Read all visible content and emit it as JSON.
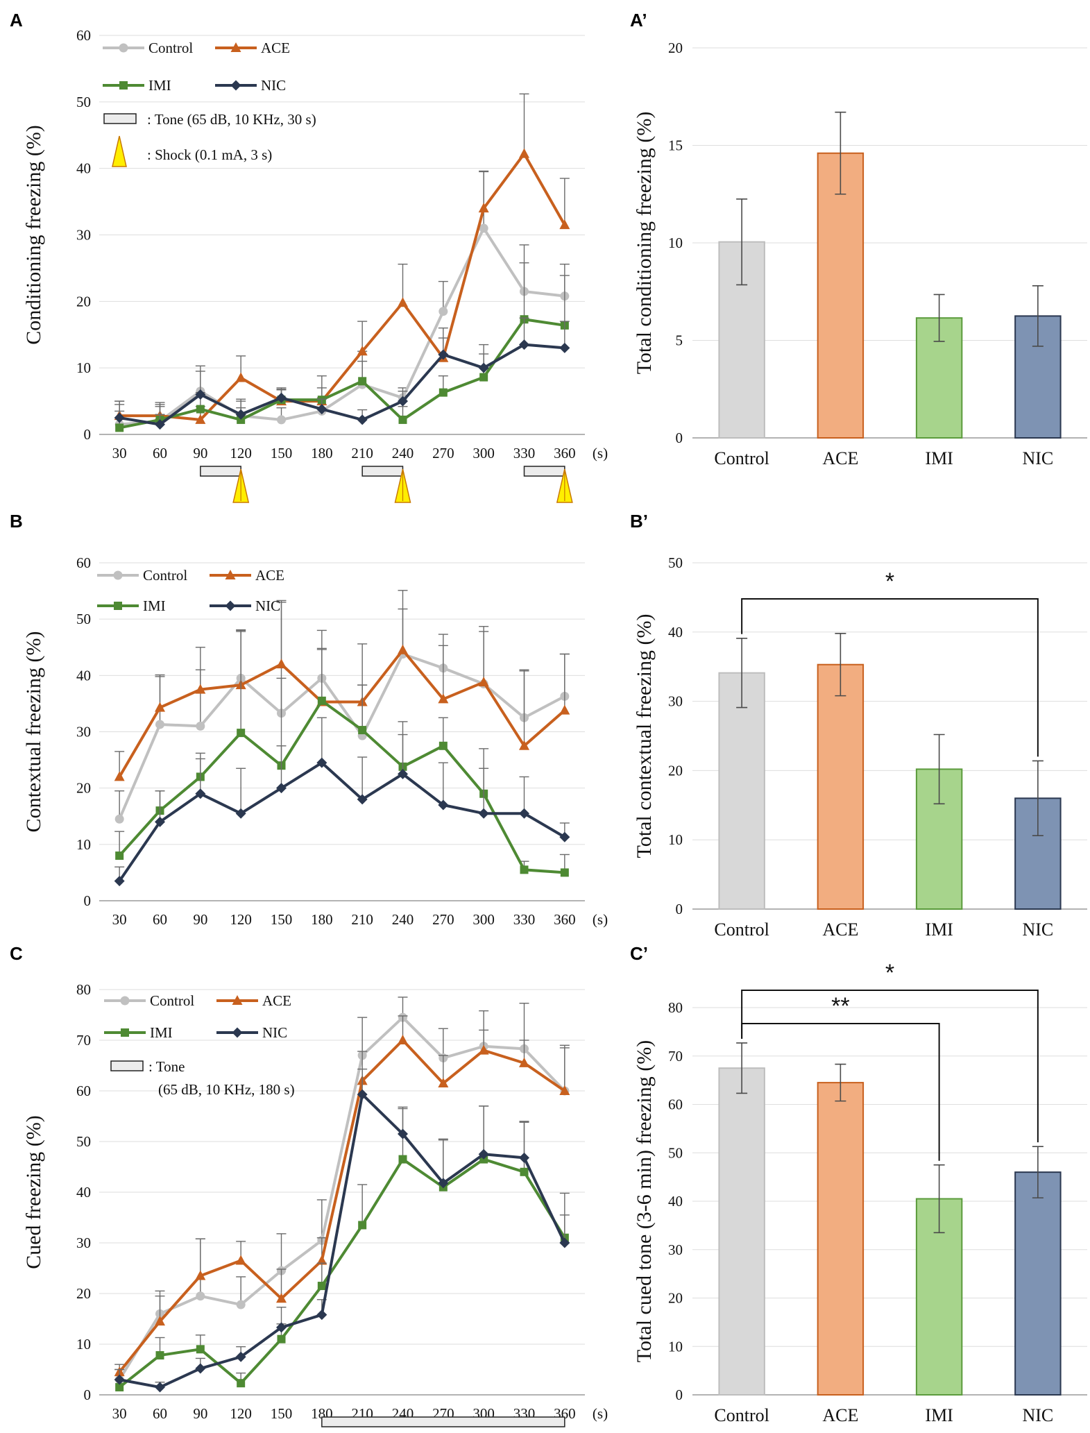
{
  "panel_labels": [
    "A",
    "A’",
    "B",
    "B’",
    "C",
    "C’"
  ],
  "series_colors": {
    "Control": "#c0c0c0",
    "ACE": "#c8601e",
    "IMI": "#4e8a33",
    "NIC": "#2b3850"
  },
  "bar_colors": {
    "Control": {
      "fill": "#d8d8d8",
      "stroke": "#bdbdbd"
    },
    "ACE": {
      "fill": "#f2ad80",
      "stroke": "#c8601e"
    },
    "IMI": {
      "fill": "#a7d48c",
      "stroke": "#5b9b3c"
    },
    "NIC": {
      "fill": "#7e93b3",
      "stroke": "#2b3850"
    }
  },
  "chart_data": [
    {
      "id": "A",
      "type": "line",
      "ylabel": "Conditioning freezing (%)",
      "x": [
        30,
        60,
        90,
        120,
        150,
        180,
        210,
        240,
        270,
        300,
        330,
        360
      ],
      "x_unit": "(s)",
      "ylim": [
        0,
        60
      ],
      "yticks": [
        0,
        10,
        20,
        30,
        40,
        50,
        60
      ],
      "series": [
        {
          "name": "Control",
          "values": [
            1.5,
            2.0,
            6.5,
            2.8,
            2.2,
            3.5,
            7.5,
            5.5,
            18.5,
            31.0,
            21.5,
            20.8
          ],
          "errors": [
            3.5,
            2.5,
            3.8,
            2.5,
            1.8,
            2.0,
            5.0,
            1.5,
            4.5,
            8.5,
            7.0,
            4.8
          ]
        },
        {
          "name": "ACE",
          "values": [
            2.8,
            2.8,
            2.2,
            8.5,
            5.0,
            5.0,
            12.5,
            19.8,
            11.5,
            34.0,
            42.2,
            31.5
          ],
          "errors": [
            2.2,
            2.0,
            2.0,
            3.3,
            1.8,
            3.8,
            4.5,
            5.8,
            4.5,
            5.6,
            9.0,
            7.0
          ]
        },
        {
          "name": "IMI",
          "values": [
            1.0,
            2.2,
            3.8,
            2.2,
            5.2,
            5.2,
            8.0,
            2.2,
            6.3,
            8.6,
            17.3,
            16.4
          ],
          "errors": [
            2.5,
            2.0,
            2.5,
            1.8,
            1.5,
            1.8,
            3.0,
            2.0,
            2.5,
            3.5,
            8.5,
            7.5
          ]
        },
        {
          "name": "NIC",
          "values": [
            2.5,
            1.5,
            6.0,
            3.0,
            5.5,
            3.8,
            2.2,
            5.0,
            12.0,
            10.0,
            13.5,
            13.0
          ],
          "errors": [
            2.0,
            1.5,
            3.5,
            2.0,
            1.5,
            1.5,
            1.5,
            1.5,
            2.5,
            3.5,
            4.0,
            4.0
          ]
        }
      ],
      "legend": {
        "Control": "Control",
        "ACE": "ACE",
        "IMI": "IMI",
        "NIC": "NIC"
      },
      "annotations": {
        "tone": ": Tone (65 dB, 10 KHz, 30 s)",
        "shock": ": Shock (0.1 mA, 3 s)"
      },
      "tone_intervals": [
        [
          90,
          120
        ],
        [
          210,
          240
        ],
        [
          330,
          360
        ]
      ],
      "shock_times": [
        120,
        240,
        360
      ]
    },
    {
      "id": "A'",
      "type": "bar",
      "ylabel": "Total conditioning freezing (%)",
      "categories": [
        "Control",
        "ACE",
        "IMI",
        "NIC"
      ],
      "values": [
        10.05,
        14.6,
        6.15,
        6.25
      ],
      "errors": [
        2.2,
        2.1,
        1.2,
        1.55
      ],
      "ylim": [
        0,
        20
      ],
      "yticks": [
        0,
        5,
        10,
        15,
        20
      ],
      "significance": []
    },
    {
      "id": "B",
      "type": "line",
      "ylabel": "Contextual freezing (%)",
      "x": [
        30,
        60,
        90,
        120,
        150,
        180,
        210,
        240,
        270,
        300,
        330,
        360
      ],
      "x_unit": "(s)",
      "ylim": [
        0,
        60
      ],
      "yticks": [
        0,
        10,
        20,
        30,
        40,
        50,
        60
      ],
      "series": [
        {
          "name": "Control",
          "values": [
            14.5,
            31.3,
            31.0,
            39.5,
            33.3,
            39.5,
            29.3,
            43.8,
            41.3,
            38.5,
            32.5,
            36.3
          ],
          "errors": [
            5.0,
            8.5,
            10.0,
            8.5,
            20.0,
            8.5,
            9.0,
            11.3,
            6.0,
            10.2,
            8.5,
            7.5
          ]
        },
        {
          "name": "ACE",
          "values": [
            22.0,
            34.3,
            37.5,
            38.3,
            42.0,
            35.3,
            35.3,
            44.5,
            35.8,
            38.8,
            27.5,
            33.8
          ],
          "errors": [
            4.5,
            5.8,
            7.5,
            9.8,
            11.0,
            9.3,
            10.3,
            7.3,
            9.5,
            9.0,
            13.3,
            10.0
          ]
        },
        {
          "name": "IMI",
          "values": [
            8.0,
            16.0,
            22.0,
            29.8,
            24.0,
            35.5,
            30.3,
            23.8,
            27.5,
            19.0,
            5.5,
            5.0
          ],
          "errors": [
            4.3,
            3.5,
            4.2,
            18.0,
            15.5,
            9.3,
            8.0,
            8.0,
            5.0,
            8.0,
            1.5,
            3.2
          ]
        },
        {
          "name": "NIC",
          "values": [
            3.5,
            14.0,
            19.0,
            15.5,
            20.0,
            24.5,
            18.0,
            22.5,
            17.0,
            15.5,
            15.5,
            11.3
          ],
          "errors": [
            2.5,
            5.5,
            6.2,
            8.0,
            7.5,
            8.0,
            7.5,
            7.0,
            7.5,
            8.0,
            6.5,
            2.5
          ]
        }
      ],
      "legend": {
        "Control": "Control",
        "ACE": "ACE",
        "IMI": "IMI",
        "NIC": "NIC"
      }
    },
    {
      "id": "B'",
      "type": "bar",
      "ylabel": "Total contextual freezing (%)",
      "categories": [
        "Control",
        "ACE",
        "IMI",
        "NIC"
      ],
      "values": [
        34.1,
        35.3,
        20.2,
        16.0
      ],
      "errors": [
        5.0,
        4.5,
        5.0,
        5.4
      ],
      "ylim": [
        0,
        50
      ],
      "yticks": [
        0,
        10,
        20,
        30,
        40,
        50
      ],
      "significance": [
        {
          "from": "Control",
          "to": "NIC",
          "label": "*"
        }
      ]
    },
    {
      "id": "C",
      "type": "line",
      "ylabel": "Cued freezing (%)",
      "x": [
        30,
        60,
        90,
        120,
        150,
        180,
        210,
        240,
        270,
        300,
        330,
        360
      ],
      "x_unit": "(s)",
      "ylim": [
        0,
        80
      ],
      "yticks": [
        0,
        10,
        20,
        30,
        40,
        50,
        60,
        70,
        80
      ],
      "series": [
        {
          "name": "Control",
          "values": [
            3.0,
            16.0,
            19.5,
            17.8,
            24.5,
            30.5,
            67.0,
            74.5,
            66.5,
            68.8,
            68.3,
            60.0
          ],
          "errors": [
            2.0,
            4.5,
            11.3,
            5.5,
            7.3,
            8.0,
            7.5,
            4.0,
            5.8,
            7.0,
            9.0,
            9.0
          ]
        },
        {
          "name": "ACE",
          "values": [
            4.5,
            14.5,
            23.5,
            26.5,
            19.0,
            26.5,
            62.0,
            70.0,
            61.5,
            68.0,
            65.5,
            60.0
          ],
          "errors": [
            1.5,
            5.0,
            7.3,
            3.8,
            5.8,
            4.5,
            5.8,
            4.8,
            5.5,
            4.0,
            4.5,
            8.5
          ]
        },
        {
          "name": "IMI",
          "values": [
            1.5,
            7.8,
            9.0,
            2.3,
            11.0,
            21.5,
            33.5,
            46.5,
            41.0,
            46.5,
            44.0,
            31.0
          ],
          "errors": [
            1.5,
            3.5,
            2.8,
            2.0,
            3.0,
            4.5,
            8.0,
            10.3,
            9.5,
            10.5,
            10.0,
            8.8
          ]
        },
        {
          "name": "NIC",
          "values": [
            3.0,
            1.5,
            5.2,
            7.5,
            13.3,
            15.8,
            59.3,
            51.5,
            41.8,
            47.5,
            46.8,
            30.0
          ],
          "errors": [
            2.0,
            1.0,
            2.0,
            2.0,
            4.0,
            3.0,
            5.0,
            5.0,
            8.5,
            9.5,
            7.0,
            5.5
          ]
        }
      ],
      "legend": {
        "Control": "Control",
        "ACE": "ACE",
        "IMI": "IMI",
        "NIC": "NIC"
      },
      "annotations": {
        "tone_line1": ": Tone",
        "tone_line2": "(65 dB, 10 KHz, 180 s)"
      },
      "tone_intervals": [
        [
          180,
          360
        ]
      ]
    },
    {
      "id": "C'",
      "type": "bar",
      "ylabel": "Total cued tone (3-6 min) freezing (%)",
      "categories": [
        "Control",
        "ACE",
        "IMI",
        "NIC"
      ],
      "values": [
        67.5,
        64.5,
        40.5,
        46.0
      ],
      "errors": [
        5.2,
        3.8,
        7.0,
        5.3
      ],
      "ylim": [
        0,
        80
      ],
      "yticks": [
        0,
        10,
        20,
        30,
        40,
        50,
        60,
        70,
        80
      ],
      "significance": [
        {
          "from": "Control",
          "to": "NIC",
          "label": "*"
        },
        {
          "from": "Control",
          "to": "IMI",
          "label": "**"
        }
      ]
    }
  ]
}
